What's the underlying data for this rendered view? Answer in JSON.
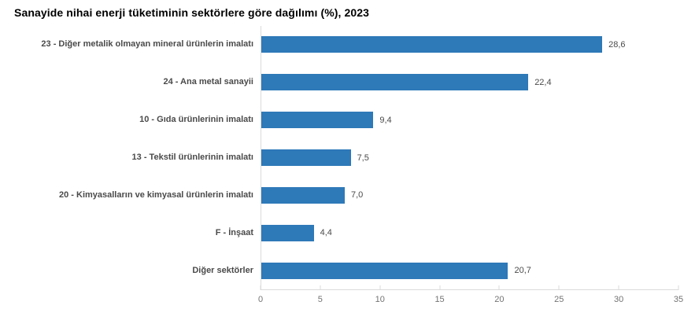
{
  "title": "Sanayide nihai enerji tüketiminin sektörlere göre dağılımı (%), 2023",
  "chart_data": {
    "type": "bar",
    "orientation": "horizontal",
    "title": "Sanayide nihai enerji tüketiminin sektörlere göre dağılımı (%), 2023",
    "categories": [
      "23 - Diğer metalik olmayan mineral ürünlerin imalatı",
      "24 - Ana metal sanayii",
      "10 - Gıda ürünlerinin imalatı",
      "13 - Tekstil ürünlerinin imalatı",
      "20 - Kimyasalların ve kimyasal ürünlerin imalatı",
      "F - İnşaat",
      "Diğer sektörler"
    ],
    "values": [
      28.6,
      22.4,
      9.4,
      7.5,
      7.0,
      4.4,
      20.7
    ],
    "value_labels": [
      "28,6",
      "22,4",
      "9,4",
      "7,5",
      "7,0",
      "4,4",
      "20,7"
    ],
    "xlabel": "",
    "ylabel": "",
    "xlim": [
      0,
      35
    ],
    "xticks": [
      0,
      5,
      10,
      15,
      20,
      25,
      30,
      35
    ],
    "grid": false,
    "legend": "none",
    "decimal_separator": ","
  },
  "colors": {
    "bar": "#2e79b8",
    "axis_line": "#dbdbdb",
    "tick_label": "#737373",
    "category_label": "#4a4a4a",
    "value_label": "#4a4a4a",
    "title": "#000000",
    "background": "#ffffff"
  }
}
